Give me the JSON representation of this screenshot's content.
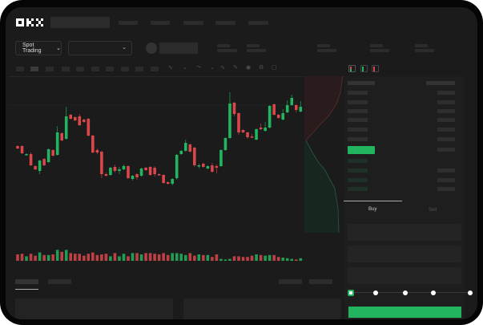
{
  "header": {
    "logo": "OKX"
  },
  "toolbar": {
    "market_dropdown": "Spot Trading",
    "pair_dropdown": ""
  },
  "order_form": {
    "tabs": [
      {
        "label": "Buy",
        "active": true
      },
      {
        "label": "Sell",
        "active": false
      }
    ],
    "slider_percent": 0
  },
  "colors": {
    "up": "#22b45f",
    "down": "#d9474b",
    "accent": "#22b45f",
    "background": "#1b1b1b"
  },
  "icons": [
    "chevron-down-icon",
    "order-book-both-icon",
    "order-book-bids-icon",
    "order-book-asks-icon",
    "camera-icon",
    "settings-icon",
    "fullscreen-icon"
  ],
  "chart_data": {
    "type": "candlestick",
    "candles": [
      [
        58,
        55,
        59,
        54
      ],
      [
        58,
        49,
        59,
        48
      ],
      [
        47,
        48,
        49,
        46
      ],
      [
        48,
        34,
        50,
        33
      ],
      [
        33,
        29,
        34,
        28
      ],
      [
        27,
        40,
        41,
        23
      ],
      [
        42,
        34,
        43,
        33
      ],
      [
        38,
        54,
        55,
        37
      ],
      [
        53,
        46,
        54,
        45
      ],
      [
        47,
        75,
        83,
        46
      ],
      [
        74,
        65,
        75,
        64
      ],
      [
        67,
        95,
        107,
        66
      ],
      [
        97,
        92,
        98,
        91
      ],
      [
        94,
        90,
        95,
        89
      ],
      [
        95,
        84,
        98,
        83
      ],
      [
        91,
        88,
        92,
        87
      ],
      [
        92,
        71,
        93,
        70
      ],
      [
        71,
        50,
        72,
        49
      ],
      [
        53,
        50,
        55,
        48
      ],
      [
        51,
        23,
        52,
        18
      ],
      [
        23,
        21,
        25,
        20
      ],
      [
        22,
        31,
        32,
        21
      ],
      [
        32,
        27,
        35,
        25
      ],
      [
        27,
        29,
        32,
        23
      ],
      [
        29,
        33,
        35,
        28
      ],
      [
        33,
        18,
        34,
        17
      ],
      [
        17,
        21,
        22,
        15
      ],
      [
        23,
        19,
        24,
        16
      ],
      [
        21,
        30,
        31,
        20
      ],
      [
        31,
        28,
        32,
        27
      ],
      [
        32,
        22,
        33,
        21
      ],
      [
        31,
        23,
        33,
        20
      ],
      [
        23,
        22,
        24,
        21
      ],
      [
        22,
        12,
        23,
        11
      ],
      [
        13,
        11,
        14,
        10
      ],
      [
        11,
        17,
        18,
        9
      ],
      [
        18,
        47,
        48,
        16
      ],
      [
        48,
        52,
        53,
        47
      ],
      [
        52,
        62,
        66,
        51
      ],
      [
        60,
        51,
        61,
        50
      ],
      [
        56,
        34,
        57,
        32
      ],
      [
        33,
        34,
        36,
        30
      ],
      [
        36,
        32,
        37,
        31
      ],
      [
        30,
        33,
        34,
        29
      ],
      [
        34,
        26,
        37,
        25
      ],
      [
        33,
        31,
        35,
        24
      ],
      [
        33,
        53,
        54,
        32
      ],
      [
        53,
        68,
        69,
        52
      ],
      [
        68,
        111,
        125,
        67
      ],
      [
        112,
        98,
        113,
        95
      ],
      [
        99,
        75,
        100,
        72
      ],
      [
        78,
        75,
        79,
        74
      ],
      [
        75,
        69,
        76,
        67
      ],
      [
        70,
        69,
        73,
        68
      ],
      [
        66,
        79,
        80,
        65
      ],
      [
        81,
        79,
        86,
        78
      ],
      [
        77,
        81,
        88,
        76
      ],
      [
        81,
        108,
        109,
        80
      ],
      [
        110,
        97,
        111,
        96
      ],
      [
        97,
        93,
        98,
        92
      ],
      [
        91,
        99,
        104,
        90
      ],
      [
        100,
        109,
        115,
        99
      ],
      [
        109,
        118,
        122,
        108
      ],
      [
        109,
        103,
        110,
        100
      ],
      [
        101,
        107,
        114,
        100
      ]
    ],
    "volume": [
      10,
      11,
      7,
      11,
      8,
      13,
      9,
      9,
      10,
      17,
      14,
      17,
      12,
      11,
      11,
      8,
      11,
      13,
      9,
      10,
      11,
      7,
      12,
      7,
      11,
      7,
      12,
      12,
      10,
      12,
      12,
      11,
      10,
      12,
      9,
      12,
      12,
      11,
      9,
      12,
      8,
      10,
      9,
      9,
      6,
      10,
      3,
      2,
      3,
      7,
      7,
      6,
      6,
      8,
      10,
      9,
      8,
      9,
      9,
      6,
      5,
      4,
      3,
      2,
      4
    ]
  }
}
